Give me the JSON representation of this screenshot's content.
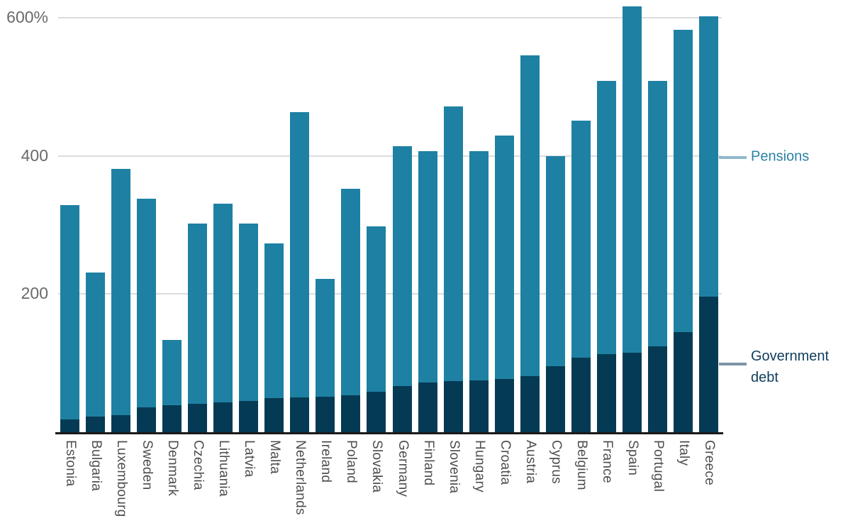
{
  "chart_data": {
    "type": "bar",
    "stacked": true,
    "unit": "% (of GDP)",
    "title": "",
    "xlabel": "",
    "ylabel": "",
    "grid": true,
    "ylim": [
      0,
      626
    ],
    "yticks": [
      {
        "value": 200,
        "label": "200"
      },
      {
        "value": 400,
        "label": "400"
      },
      {
        "value": 600,
        "label": "600%"
      }
    ],
    "categories": [
      "Estonia",
      "Bulgaria",
      "Luxembourg",
      "Sweden",
      "Denmark",
      "Czechia",
      "Lithuania",
      "Latvia",
      "Malta",
      "Netherlands",
      "Ireland",
      "Poland",
      "Slovakia",
      "Germany",
      "Finland",
      "Slovenia",
      "Hungary",
      "Croatia",
      "Austria",
      "Cyprus",
      "Belgium",
      "France",
      "Spain",
      "Portugal",
      "Italy",
      "Greece"
    ],
    "series": [
      {
        "name": "Government debt",
        "color": "#053a54",
        "values": [
          19,
          23,
          25,
          36,
          39,
          41,
          43,
          45,
          49,
          50,
          51,
          53,
          59,
          67,
          72,
          74,
          75,
          77,
          81,
          96,
          108,
          113,
          115,
          124,
          145,
          196
        ]
      },
      {
        "name": "Pensions",
        "color": "#1e81a3",
        "values": [
          310,
          209,
          356,
          302,
          95,
          261,
          288,
          257,
          224,
          413,
          171,
          299,
          239,
          347,
          335,
          398,
          332,
          352,
          464,
          304,
          343,
          396,
          501,
          384,
          438,
          406
        ]
      }
    ],
    "stack_totals": [
      329,
      232,
      381,
      338,
      134,
      302,
      331,
      302,
      273,
      463,
      222,
      352,
      298,
      414,
      407,
      472,
      407,
      429,
      545,
      400,
      451,
      509,
      616,
      508,
      583,
      602
    ],
    "legend_position": "right",
    "legend": [
      {
        "label": "Pensions",
        "text_color": "#2d81a4",
        "tick_color": "#8fb9cb"
      },
      {
        "label": "Government debt",
        "text_color": "#0f3c5c",
        "tick_color": "#7e95a8"
      }
    ]
  },
  "styles": {
    "background": "#ffffff",
    "gridline_color": "#dcdcdc",
    "axis_line_color": "#1a1a1a",
    "ytick_label_color": "#6a6a6a",
    "xtick_label_color": "#4e4e4e"
  }
}
